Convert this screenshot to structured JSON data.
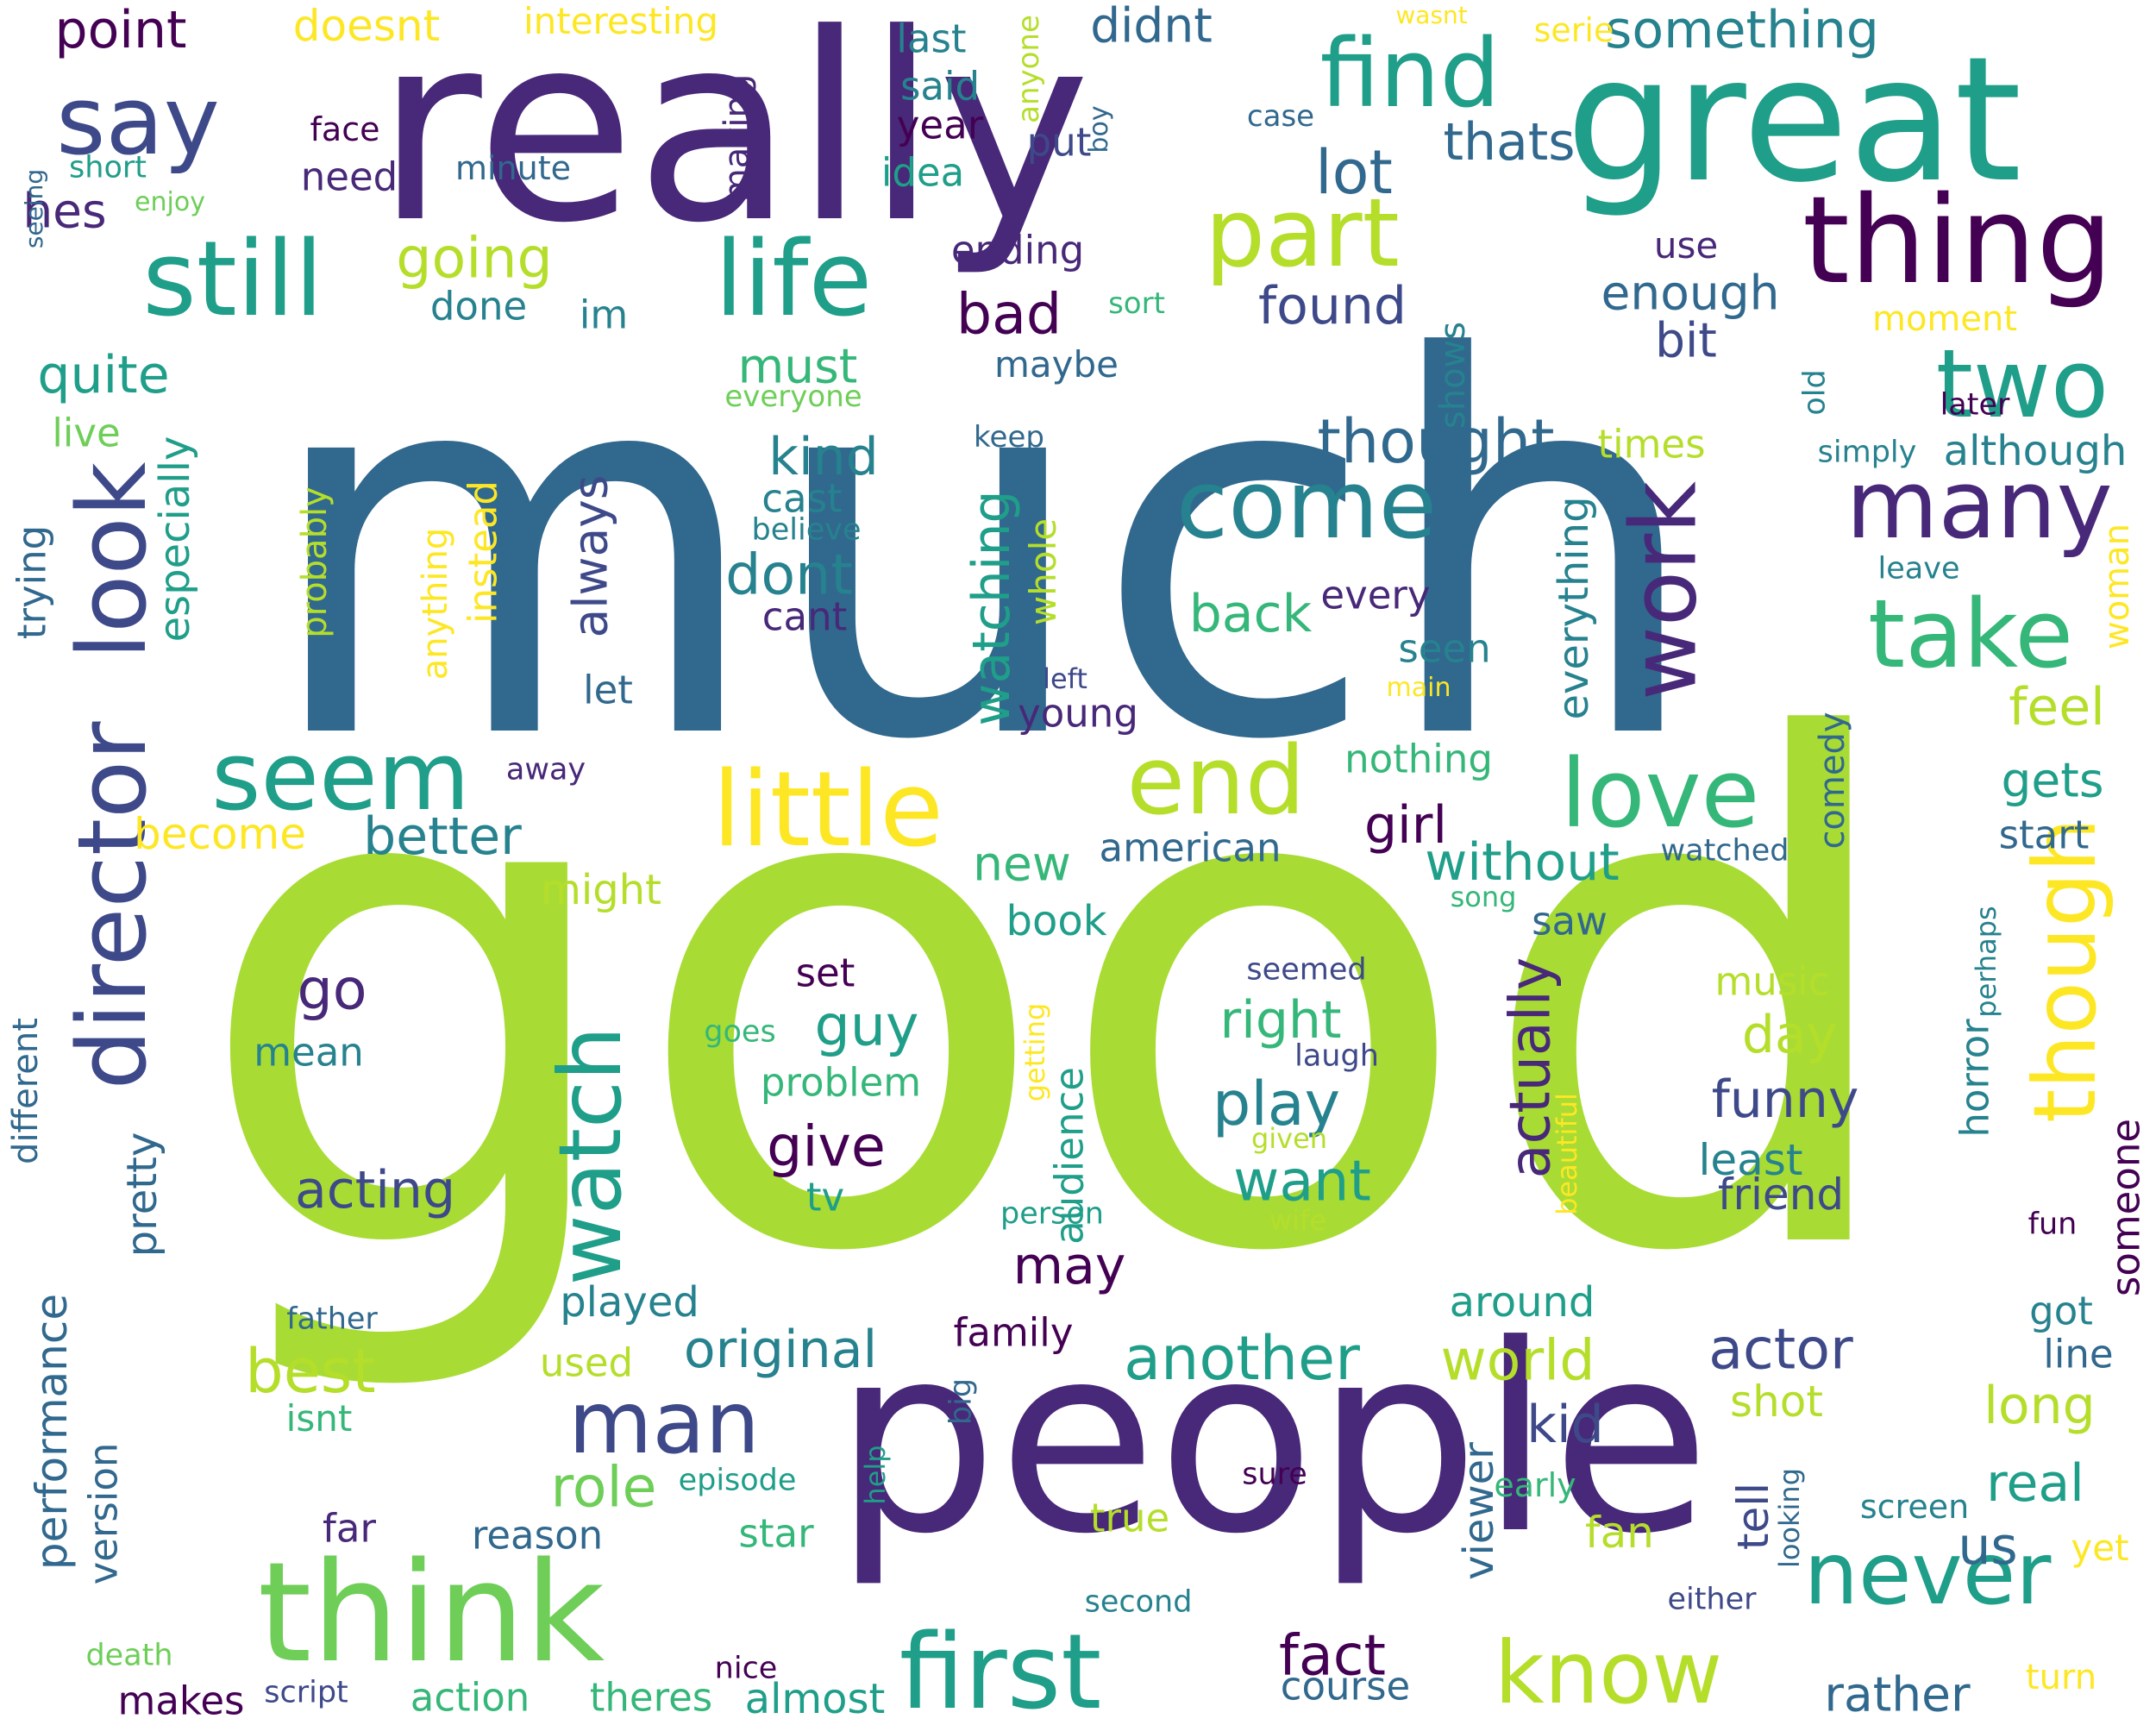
{
  "palette": {
    "p1": "#440154",
    "p2": "#482878",
    "p3": "#3e4989",
    "p4": "#31688e",
    "p5": "#26828e",
    "p6": "#1f9e89",
    "p7": "#35b779",
    "p8": "#6ece58",
    "p9": "#b5de2b",
    "p10": "#a8dc34",
    "p11": "#fde725"
  },
  "words": [
    {
      "text": "much",
      "color": "p4",
      "orient": "h"
    },
    {
      "text": "good",
      "color": "p10",
      "orient": "h"
    },
    {
      "text": "really",
      "color": "p2",
      "orient": "h"
    },
    {
      "text": "people",
      "color": "p2",
      "orient": "h"
    },
    {
      "text": "great",
      "color": "p6",
      "orient": "h"
    },
    {
      "text": "think",
      "color": "p8",
      "orient": "h"
    },
    {
      "text": "director",
      "color": "p3",
      "orient": "v"
    },
    {
      "text": "look",
      "color": "p3",
      "orient": "v"
    },
    {
      "text": "life",
      "color": "p6",
      "orient": "h"
    },
    {
      "text": "thing",
      "color": "p1",
      "orient": "h"
    },
    {
      "text": "first",
      "color": "p6",
      "orient": "h"
    },
    {
      "text": "little",
      "color": "p11",
      "orient": "h"
    },
    {
      "text": "say",
      "color": "p3",
      "orient": "h"
    },
    {
      "text": "still",
      "color": "p6",
      "orient": "h"
    },
    {
      "text": "find",
      "color": "p6",
      "orient": "h"
    },
    {
      "text": "part",
      "color": "p9",
      "orient": "h"
    },
    {
      "text": "come",
      "color": "p5",
      "orient": "h"
    },
    {
      "text": "many",
      "color": "p2",
      "orient": "h"
    },
    {
      "text": "two",
      "color": "p6",
      "orient": "h"
    },
    {
      "text": "take",
      "color": "p7",
      "orient": "h"
    },
    {
      "text": "seem",
      "color": "p6",
      "orient": "h"
    },
    {
      "text": "end",
      "color": "p9",
      "orient": "h"
    },
    {
      "text": "love",
      "color": "p7",
      "orient": "h"
    },
    {
      "text": "work",
      "color": "p2",
      "orient": "v"
    },
    {
      "text": "though",
      "color": "p11",
      "orient": "v"
    },
    {
      "text": "watch",
      "color": "p6",
      "orient": "v"
    },
    {
      "text": "man",
      "color": "p3",
      "orient": "h"
    },
    {
      "text": "never",
      "color": "p6",
      "orient": "h"
    },
    {
      "text": "know",
      "color": "p9",
      "orient": "h"
    },
    {
      "text": "point",
      "color": "p1",
      "orient": "h"
    },
    {
      "text": "doesnt",
      "color": "p11",
      "orient": "h"
    },
    {
      "text": "interesting",
      "color": "p11",
      "orient": "h"
    },
    {
      "text": "last",
      "color": "p5",
      "orient": "h"
    },
    {
      "text": "didnt",
      "color": "p4",
      "orient": "h"
    },
    {
      "text": "something",
      "color": "p5",
      "orient": "h"
    },
    {
      "text": "wasnt",
      "color": "p11",
      "orient": "h"
    },
    {
      "text": "serie",
      "color": "p11",
      "orient": "h"
    },
    {
      "text": "said",
      "color": "p5",
      "orient": "h"
    },
    {
      "text": "year",
      "color": "p1",
      "orient": "h"
    },
    {
      "text": "idea",
      "color": "p6",
      "orient": "h"
    },
    {
      "text": "face",
      "color": "p1",
      "orient": "h"
    },
    {
      "text": "need",
      "color": "p2",
      "orient": "h"
    },
    {
      "text": "minute",
      "color": "p4",
      "orient": "h"
    },
    {
      "text": "put",
      "color": "p3",
      "orient": "h"
    },
    {
      "text": "case",
      "color": "p4",
      "orient": "h"
    },
    {
      "text": "thats",
      "color": "p4",
      "orient": "h"
    },
    {
      "text": "lot",
      "color": "p4",
      "orient": "h"
    },
    {
      "text": "short",
      "color": "p6",
      "orient": "h"
    },
    {
      "text": "enjoy",
      "color": "p8",
      "orient": "h"
    },
    {
      "text": "hes",
      "color": "p2",
      "orient": "h"
    },
    {
      "text": "going",
      "color": "p9",
      "orient": "h"
    },
    {
      "text": "done",
      "color": "p5",
      "orient": "h"
    },
    {
      "text": "im",
      "color": "p5",
      "orient": "h"
    },
    {
      "text": "ending",
      "color": "p2",
      "orient": "h"
    },
    {
      "text": "use",
      "color": "p2",
      "orient": "h"
    },
    {
      "text": "enough",
      "color": "p4",
      "orient": "h"
    },
    {
      "text": "bad",
      "color": "p1",
      "orient": "h"
    },
    {
      "text": "found",
      "color": "p3",
      "orient": "h"
    },
    {
      "text": "sort",
      "color": "p7",
      "orient": "h"
    },
    {
      "text": "bit",
      "color": "p3",
      "orient": "h"
    },
    {
      "text": "moment",
      "color": "p11",
      "orient": "h"
    },
    {
      "text": "quite",
      "color": "p6",
      "orient": "h"
    },
    {
      "text": "must",
      "color": "p7",
      "orient": "h"
    },
    {
      "text": "maybe",
      "color": "p4",
      "orient": "h"
    },
    {
      "text": "everyone",
      "color": "p8",
      "orient": "h"
    },
    {
      "text": "keep",
      "color": "p4",
      "orient": "h"
    },
    {
      "text": "later",
      "color": "p1",
      "orient": "h"
    },
    {
      "text": "live",
      "color": "p8",
      "orient": "h"
    },
    {
      "text": "kind",
      "color": "p5",
      "orient": "h"
    },
    {
      "text": "cast",
      "color": "p5",
      "orient": "h"
    },
    {
      "text": "believe",
      "color": "p5",
      "orient": "h"
    },
    {
      "text": "thought",
      "color": "p4",
      "orient": "h"
    },
    {
      "text": "times",
      "color": "p9",
      "orient": "h"
    },
    {
      "text": "simply",
      "color": "p5",
      "orient": "h"
    },
    {
      "text": "although",
      "color": "p5",
      "orient": "h"
    },
    {
      "text": "dont",
      "color": "p5",
      "orient": "h"
    },
    {
      "text": "cant",
      "color": "p2",
      "orient": "h"
    },
    {
      "text": "back",
      "color": "p7",
      "orient": "h"
    },
    {
      "text": "every",
      "color": "p2",
      "orient": "h"
    },
    {
      "text": "leave",
      "color": "p5",
      "orient": "h"
    },
    {
      "text": "seen",
      "color": "p5",
      "orient": "h"
    },
    {
      "text": "let",
      "color": "p4",
      "orient": "h"
    },
    {
      "text": "left",
      "color": "p3",
      "orient": "h"
    },
    {
      "text": "main",
      "color": "p11",
      "orient": "h"
    },
    {
      "text": "young",
      "color": "p2",
      "orient": "h"
    },
    {
      "text": "feel",
      "color": "p9",
      "orient": "h"
    },
    {
      "text": "nothing",
      "color": "p7",
      "orient": "h"
    },
    {
      "text": "away",
      "color": "p2",
      "orient": "h"
    },
    {
      "text": "gets",
      "color": "p6",
      "orient": "h"
    },
    {
      "text": "become",
      "color": "p11",
      "orient": "h"
    },
    {
      "text": "better",
      "color": "p5",
      "orient": "h"
    },
    {
      "text": "girl",
      "color": "p1",
      "orient": "h"
    },
    {
      "text": "without",
      "color": "p6",
      "orient": "h"
    },
    {
      "text": "new",
      "color": "p7",
      "orient": "h"
    },
    {
      "text": "american",
      "color": "p4",
      "orient": "h"
    },
    {
      "text": "watched",
      "color": "p4",
      "orient": "h"
    },
    {
      "text": "start",
      "color": "p4",
      "orient": "h"
    },
    {
      "text": "might",
      "color": "p9",
      "orient": "h"
    },
    {
      "text": "book",
      "color": "p6",
      "orient": "h"
    },
    {
      "text": "song",
      "color": "p7",
      "orient": "h"
    },
    {
      "text": "saw",
      "color": "p4",
      "orient": "h"
    },
    {
      "text": "go",
      "color": "p2",
      "orient": "h"
    },
    {
      "text": "set",
      "color": "p1",
      "orient": "h"
    },
    {
      "text": "seemed",
      "color": "p3",
      "orient": "h"
    },
    {
      "text": "music",
      "color": "p9",
      "orient": "h"
    },
    {
      "text": "guy",
      "color": "p6",
      "orient": "h"
    },
    {
      "text": "right",
      "color": "p7",
      "orient": "h"
    },
    {
      "text": "day",
      "color": "p9",
      "orient": "h"
    },
    {
      "text": "mean",
      "color": "p5",
      "orient": "h"
    },
    {
      "text": "goes",
      "color": "p7",
      "orient": "h"
    },
    {
      "text": "problem",
      "color": "p7",
      "orient": "h"
    },
    {
      "text": "laugh",
      "color": "p3",
      "orient": "h"
    },
    {
      "text": "play",
      "color": "p5",
      "orient": "h"
    },
    {
      "text": "funny",
      "color": "p3",
      "orient": "h"
    },
    {
      "text": "give",
      "color": "p1",
      "orient": "h"
    },
    {
      "text": "given",
      "color": "p9",
      "orient": "h"
    },
    {
      "text": "least",
      "color": "p5",
      "orient": "h"
    },
    {
      "text": "acting",
      "color": "p3",
      "orient": "h"
    },
    {
      "text": "want",
      "color": "p6",
      "orient": "h"
    },
    {
      "text": "friend",
      "color": "p3",
      "orient": "h"
    },
    {
      "text": "tv",
      "color": "p6",
      "orient": "h"
    },
    {
      "text": "person",
      "color": "p6",
      "orient": "h"
    },
    {
      "text": "wife",
      "color": "p9",
      "orient": "h"
    },
    {
      "text": "fun",
      "color": "p1",
      "orient": "h"
    },
    {
      "text": "may",
      "color": "p1",
      "orient": "h"
    },
    {
      "text": "played",
      "color": "p5",
      "orient": "h"
    },
    {
      "text": "around",
      "color": "p6",
      "orient": "h"
    },
    {
      "text": "got",
      "color": "p5",
      "orient": "h"
    },
    {
      "text": "father",
      "color": "p4",
      "orient": "h"
    },
    {
      "text": "family",
      "color": "p1",
      "orient": "h"
    },
    {
      "text": "line",
      "color": "p4",
      "orient": "h"
    },
    {
      "text": "best",
      "color": "p9",
      "orient": "h"
    },
    {
      "text": "original",
      "color": "p5",
      "orient": "h"
    },
    {
      "text": "another",
      "color": "p6",
      "orient": "h"
    },
    {
      "text": "actor",
      "color": "p3",
      "orient": "h"
    },
    {
      "text": "world",
      "color": "p9",
      "orient": "h"
    },
    {
      "text": "used",
      "color": "p9",
      "orient": "h"
    },
    {
      "text": "long",
      "color": "p9",
      "orient": "h"
    },
    {
      "text": "isnt",
      "color": "p7",
      "orient": "h"
    },
    {
      "text": "shot",
      "color": "p9",
      "orient": "h"
    },
    {
      "text": "kid",
      "color": "p3",
      "orient": "h"
    },
    {
      "text": "role",
      "color": "p8",
      "orient": "h"
    },
    {
      "text": "episode",
      "color": "p6",
      "orient": "h"
    },
    {
      "text": "sure",
      "color": "p1",
      "orient": "h"
    },
    {
      "text": "early",
      "color": "p7",
      "orient": "h"
    },
    {
      "text": "real",
      "color": "p6",
      "orient": "h"
    },
    {
      "text": "screen",
      "color": "p5",
      "orient": "h"
    },
    {
      "text": "far",
      "color": "p2",
      "orient": "h"
    },
    {
      "text": "reason",
      "color": "p4",
      "orient": "h"
    },
    {
      "text": "star",
      "color": "p7",
      "orient": "h"
    },
    {
      "text": "true",
      "color": "p9",
      "orient": "h"
    },
    {
      "text": "fan",
      "color": "p9",
      "orient": "h"
    },
    {
      "text": "us",
      "color": "p4",
      "orient": "h"
    },
    {
      "text": "yet",
      "color": "p11",
      "orient": "h"
    },
    {
      "text": "second",
      "color": "p5",
      "orient": "h"
    },
    {
      "text": "either",
      "color": "p3",
      "orient": "h"
    },
    {
      "text": "nice",
      "color": "p1",
      "orient": "h"
    },
    {
      "text": "fact",
      "color": "p1",
      "orient": "h"
    },
    {
      "text": "death",
      "color": "p8",
      "orient": "h"
    },
    {
      "text": "course",
      "color": "p4",
      "orient": "h"
    },
    {
      "text": "rather",
      "color": "p4",
      "orient": "h"
    },
    {
      "text": "turn",
      "color": "p11",
      "orient": "h"
    },
    {
      "text": "makes",
      "color": "p1",
      "orient": "h"
    },
    {
      "text": "script",
      "color": "p3",
      "orient": "h"
    },
    {
      "text": "action",
      "color": "p7",
      "orient": "h"
    },
    {
      "text": "theres",
      "color": "p7",
      "orient": "h"
    },
    {
      "text": "almost",
      "color": "p6",
      "orient": "h"
    },
    {
      "text": "making",
      "color": "p2",
      "orient": "v"
    },
    {
      "text": "anyone",
      "color": "p9",
      "orient": "v"
    },
    {
      "text": "boy",
      "color": "p4",
      "orient": "v"
    },
    {
      "text": "seeing",
      "color": "p4",
      "orient": "v"
    },
    {
      "text": "shows",
      "color": "p5",
      "orient": "v"
    },
    {
      "text": "old",
      "color": "p5",
      "orient": "v"
    },
    {
      "text": "especially",
      "color": "p6",
      "orient": "v"
    },
    {
      "text": "trying",
      "color": "p4",
      "orient": "v"
    },
    {
      "text": "probably",
      "color": "p9",
      "orient": "v"
    },
    {
      "text": "anything",
      "color": "p11",
      "orient": "v"
    },
    {
      "text": "instead",
      "color": "p11",
      "orient": "v"
    },
    {
      "text": "always",
      "color": "p3",
      "orient": "v"
    },
    {
      "text": "watching",
      "color": "p6",
      "orient": "v"
    },
    {
      "text": "whole",
      "color": "p9",
      "orient": "v"
    },
    {
      "text": "everything",
      "color": "p5",
      "orient": "v"
    },
    {
      "text": "woman",
      "color": "p11",
      "orient": "v"
    },
    {
      "text": "comedy",
      "color": "p4",
      "orient": "v"
    },
    {
      "text": "different",
      "color": "p4",
      "orient": "v"
    },
    {
      "text": "pretty",
      "color": "p4",
      "orient": "v"
    },
    {
      "text": "actually",
      "color": "p2",
      "orient": "v"
    },
    {
      "text": "audience",
      "color": "p6",
      "orient": "v"
    },
    {
      "text": "getting",
      "color": "p11",
      "orient": "v"
    },
    {
      "text": "beautiful",
      "color": "p11",
      "orient": "v"
    },
    {
      "text": "horror",
      "color": "p5",
      "orient": "v"
    },
    {
      "text": "perhaps",
      "color": "p5",
      "orient": "v"
    },
    {
      "text": "someone",
      "color": "p1",
      "orient": "v"
    },
    {
      "text": "performance",
      "color": "p4",
      "orient": "v"
    },
    {
      "text": "version",
      "color": "p4",
      "orient": "v"
    },
    {
      "text": "big",
      "color": "p4",
      "orient": "v"
    },
    {
      "text": "help",
      "color": "p6",
      "orient": "v"
    },
    {
      "text": "viewer",
      "color": "p4",
      "orient": "v"
    },
    {
      "text": "tell",
      "color": "p3",
      "orient": "v"
    },
    {
      "text": "looking",
      "color": "p4",
      "orient": "v"
    }
  ]
}
